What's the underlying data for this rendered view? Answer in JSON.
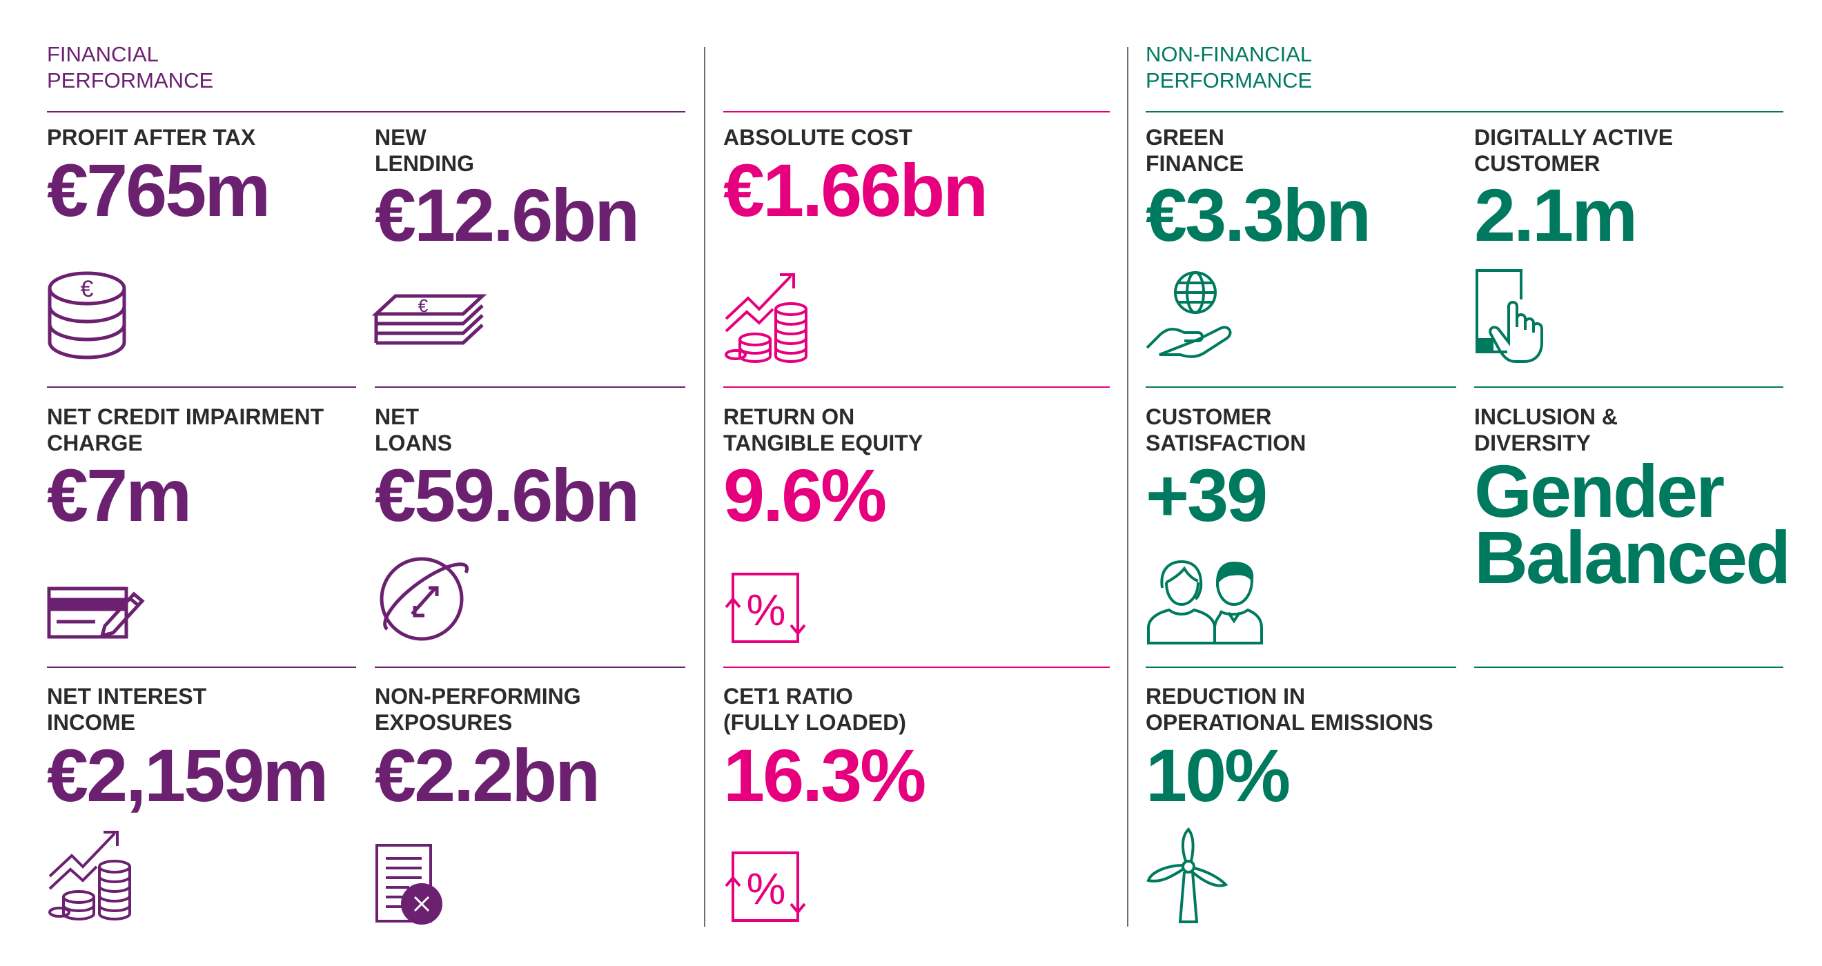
{
  "colors": {
    "purple": "#6b2070",
    "magenta": "#e6007e",
    "green": "#007a5e",
    "label": "#2b2b2b",
    "divider": "#6e6e6e"
  },
  "sections": {
    "financial": {
      "title_line1": "FINANCIAL",
      "title_line2": "PERFORMANCE"
    },
    "non_financial": {
      "title_line1": "NON-FINANCIAL",
      "title_line2": "PERFORMANCE"
    }
  },
  "metrics": {
    "profit_after_tax": {
      "label_line1": "PROFIT AFTER TAX",
      "label_line2": "",
      "value": "€765m",
      "icon": "euro-coin-stack-icon"
    },
    "new_lending": {
      "label_line1": "NEW",
      "label_line2": "LENDING",
      "value": "€12.6bn",
      "icon": "banknote-stack-icon"
    },
    "net_credit_impairment": {
      "label_line1": "NET CREDIT IMPAIRMENT",
      "label_line2": "CHARGE",
      "value": "€7m",
      "icon": "cheque-pen-icon"
    },
    "net_loans": {
      "label_line1": "NET",
      "label_line2": "LOANS",
      "value": "€59.6bn",
      "icon": "exchange-orbit-icon"
    },
    "net_interest_income": {
      "label_line1": "NET INTEREST",
      "label_line2": "INCOME",
      "value": "€2,159m",
      "icon": "growth-coins-icon"
    },
    "non_performing_exposures": {
      "label_line1": "NON-PERFORMING",
      "label_line2": "EXPOSURES",
      "value": "€2.2bn",
      "icon": "document-cross-icon"
    },
    "absolute_cost": {
      "label_line1": "ABSOLUTE COST",
      "label_line2": "",
      "value": "€1.66bn",
      "icon": "growth-coins-icon"
    },
    "return_on_tangible_equity": {
      "label_line1": "RETURN ON",
      "label_line2": "TANGIBLE EQUITY",
      "value": "9.6%",
      "icon": "percent-arrows-icon"
    },
    "cet1_ratio": {
      "label_line1": "CET1 RATIO",
      "label_line2": "(FULLY LOADED)",
      "value": "16.3%",
      "icon": "percent-arrows-icon"
    },
    "green_finance": {
      "label_line1": "GREEN",
      "label_line2": "FINANCE",
      "value": "€3.3bn",
      "icon": "globe-hand-icon"
    },
    "digitally_active_customer": {
      "label_line1": "DIGITALLY ACTIVE",
      "label_line2": "CUSTOMER",
      "value": "2.1m",
      "icon": "phone-tap-icon"
    },
    "customer_satisfaction": {
      "label_line1": "CUSTOMER",
      "label_line2": "SATISFACTION",
      "value": "+39",
      "icon": "two-people-icon"
    },
    "inclusion_diversity": {
      "label_line1": "INCLUSION &",
      "label_line2": "DIVERSITY",
      "value_line1": "Gender",
      "value_line2": "Balanced"
    },
    "reduction_emissions": {
      "label_line1": "REDUCTION IN",
      "label_line2": "OPERATIONAL EMISSIONS",
      "value": "10%",
      "icon": "wind-turbine-icon"
    }
  }
}
